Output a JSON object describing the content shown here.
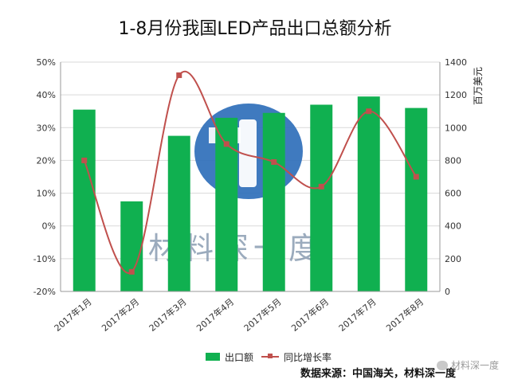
{
  "title": "1-8月份我国LED产品出口总额分析",
  "source_text": "数据来源：中国海关，材料深一度",
  "watermark_text": "材料深一度",
  "colors": {
    "bar": "#10b050",
    "line": "#c0504d",
    "grid": "#d9d9d9",
    "axis_text": "#333333"
  },
  "chart_data": {
    "type": "bar",
    "categories": [
      "2017年1月",
      "2017年2月",
      "2017年3月",
      "2017年4月",
      "2017年5月",
      "2017年6月",
      "2017年7月",
      "2017年8月"
    ],
    "series": [
      {
        "name": "出口额",
        "type": "bar",
        "axis": "right",
        "values": [
          1110,
          550,
          950,
          1060,
          1090,
          1140,
          1190,
          1120
        ]
      },
      {
        "name": "同比增长率",
        "type": "line",
        "axis": "left",
        "values": [
          20,
          -14,
          46,
          25,
          19.5,
          12,
          35,
          15
        ]
      }
    ],
    "yleft": {
      "ticks": [
        "50%",
        "40%",
        "30%",
        "20%",
        "10%",
        "0%",
        "-10%",
        "-20%"
      ],
      "min": -20,
      "max": 50,
      "step": 10
    },
    "yright": {
      "label": "百万美元",
      "ticks": [
        "1400",
        "1200",
        "1000",
        "800",
        "600",
        "400",
        "200",
        "0"
      ],
      "min": 0,
      "max": 1400,
      "step": 200
    },
    "grid": true,
    "legend_position": "bottom"
  }
}
